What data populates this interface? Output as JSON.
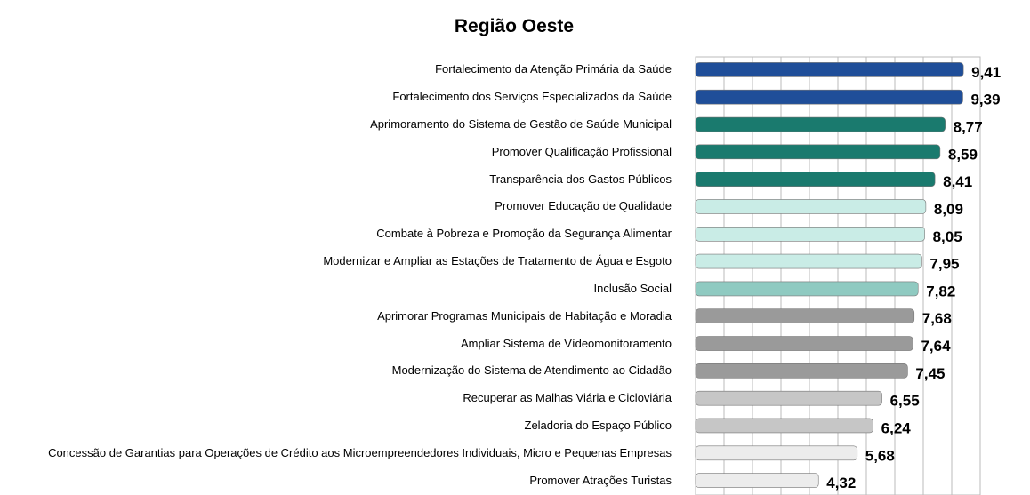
{
  "chart_data": {
    "type": "bar",
    "orientation": "horizontal",
    "title": "Região Oeste",
    "categories": [
      "Fortalecimento da Atenção Primária da Saúde",
      "Fortalecimento dos Serviços Especializados da Saúde",
      "Aprimoramento do Sistema de Gestão de Saúde Municipal",
      "Promover Qualificação Profissional",
      "Transparência dos Gastos Públicos",
      "Promover Educação de Qualidade",
      "Combate à Pobreza e Promoção da Segurança Alimentar",
      "Modernizar e Ampliar as Estações de Tratamento de Água e Esgoto",
      "Inclusão Social",
      "Aprimorar Programas Municipais de Habitação e Moradia",
      "Ampliar Sistema de Vídeomonitoramento",
      "Modernização do Sistema de Atendimento ao Cidadão",
      "Recuperar as Malhas Viária e Cicloviária",
      "Zeladoria do Espaço Público",
      "Concessão de Garantias para Operações de Crédito aos Microempreendedores Individuais, Micro e Pequenas Empresas",
      "Promover Atrações Turistas"
    ],
    "values": [
      9.41,
      9.39,
      8.77,
      8.59,
      8.41,
      8.09,
      8.05,
      7.95,
      7.82,
      7.68,
      7.64,
      7.45,
      6.55,
      6.24,
      5.68,
      4.32
    ],
    "value_labels": [
      "9,41",
      "9,39",
      "8,77",
      "8,59",
      "8,41",
      "8,09",
      "8,05",
      "7,95",
      "7,82",
      "7,68",
      "7,64",
      "7,45",
      "6,55",
      "6,24",
      "5,68",
      "4,32"
    ],
    "colors": [
      "#1f4e99",
      "#1f4e99",
      "#1a7a6e",
      "#1a7a6e",
      "#1a7a6e",
      "#c9ece6",
      "#c9ece6",
      "#c9ece6",
      "#8fcac1",
      "#9a9a9a",
      "#9a9a9a",
      "#9a9a9a",
      "#c6c6c6",
      "#c6c6c6",
      "#ececec",
      "#ececec"
    ],
    "xlim": [
      0,
      10
    ],
    "xticks": [
      0,
      1,
      2,
      3,
      4,
      5,
      6,
      7,
      8,
      9,
      10
    ],
    "grid": true
  }
}
